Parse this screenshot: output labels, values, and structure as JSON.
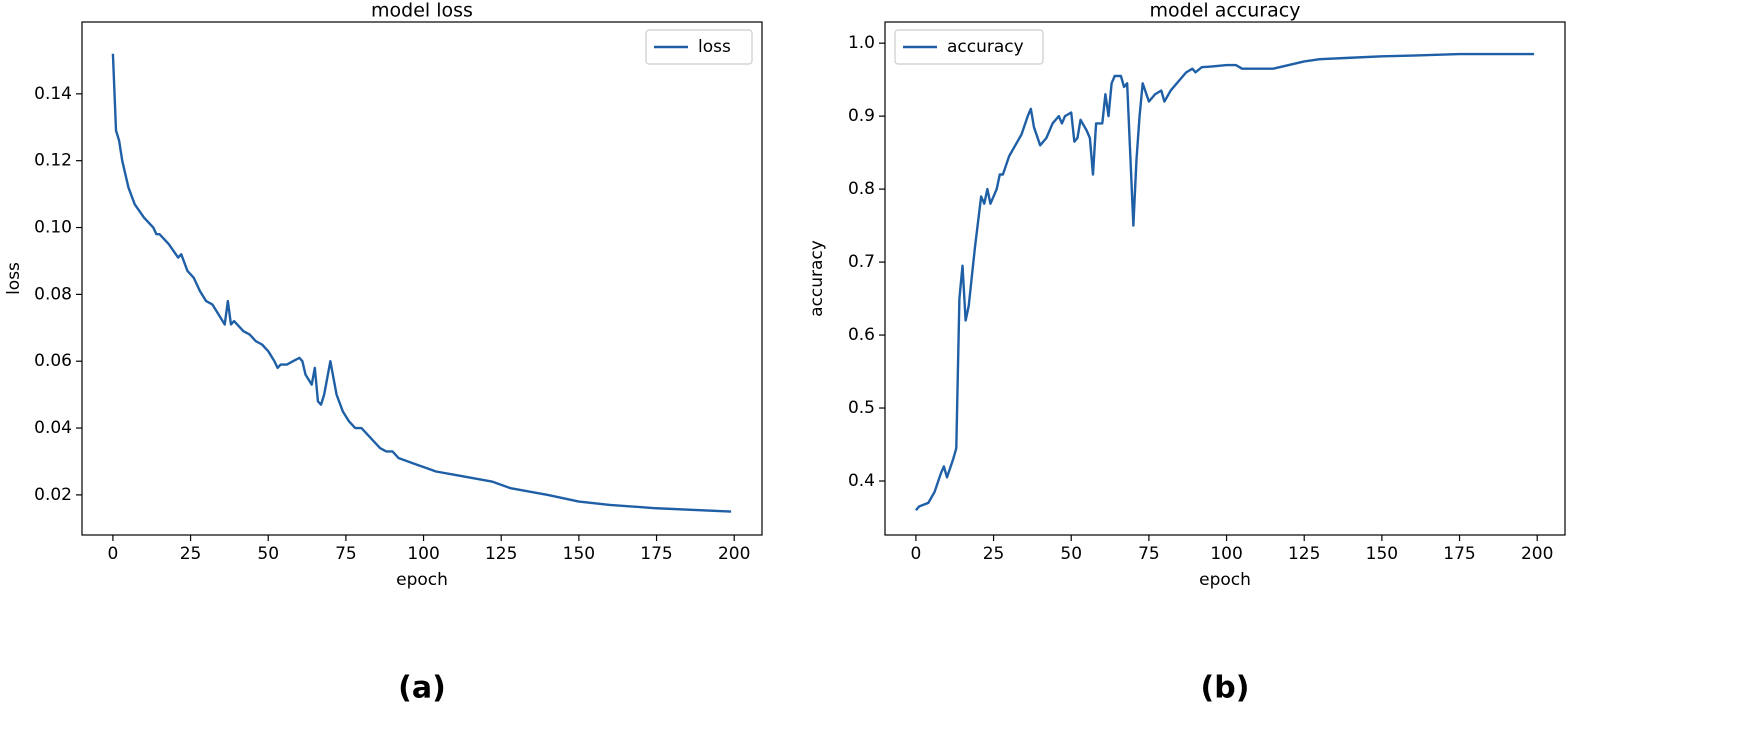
{
  "chart_data": [
    {
      "type": "line",
      "title": "model loss",
      "xlabel": "epoch",
      "ylabel": "loss",
      "caption": "(a)",
      "x": [
        0,
        1,
        2,
        3,
        4,
        5,
        7,
        10,
        13,
        14,
        15,
        18,
        21,
        22,
        24,
        26,
        28,
        30,
        32,
        34,
        36,
        37,
        38,
        39,
        42,
        44,
        46,
        48,
        50,
        52,
        53,
        54,
        56,
        58,
        60,
        61,
        62,
        64,
        65,
        66,
        67,
        68,
        70,
        72,
        74,
        76,
        78,
        80,
        82,
        84,
        86,
        88,
        90,
        92,
        95,
        98,
        101,
        104,
        110,
        116,
        122,
        128,
        134,
        140,
        150,
        160,
        175,
        199
      ],
      "series": [
        {
          "name": "loss",
          "color": "#1f5fa6",
          "values": [
            0.152,
            0.129,
            0.126,
            0.12,
            0.116,
            0.112,
            0.107,
            0.103,
            0.1,
            0.098,
            0.098,
            0.095,
            0.091,
            0.092,
            0.087,
            0.085,
            0.081,
            0.078,
            0.077,
            0.074,
            0.071,
            0.078,
            0.071,
            0.072,
            0.069,
            0.068,
            0.066,
            0.065,
            0.063,
            0.06,
            0.058,
            0.059,
            0.059,
            0.06,
            0.061,
            0.06,
            0.056,
            0.053,
            0.058,
            0.048,
            0.047,
            0.05,
            0.06,
            0.05,
            0.045,
            0.042,
            0.04,
            0.04,
            0.038,
            0.036,
            0.034,
            0.033,
            0.033,
            0.031,
            0.03,
            0.029,
            0.028,
            0.027,
            0.026,
            0.025,
            0.024,
            0.022,
            0.021,
            0.02,
            0.018,
            0.017,
            0.016,
            0.015
          ]
        }
      ],
      "xlim": [
        -9.95,
        208.95
      ],
      "ylim": [
        0.008,
        0.1615
      ],
      "xticks": [
        0,
        25,
        50,
        75,
        100,
        125,
        150,
        175,
        200
      ],
      "yticks": [
        0.02,
        0.04,
        0.06,
        0.08,
        {
          "value": 0.1,
          "label": "0.10"
        },
        0.12,
        0.14
      ],
      "legend": "upper right"
    },
    {
      "type": "line",
      "title": "model accuracy",
      "xlabel": "epoch",
      "ylabel": "accuracy",
      "caption": "(b)",
      "x": [
        0,
        1,
        4,
        6,
        8,
        9,
        10,
        12,
        13,
        14,
        15,
        16,
        17,
        19,
        21,
        22,
        23,
        24,
        26,
        27,
        28,
        30,
        32,
        34,
        36,
        37,
        38,
        40,
        42,
        44,
        46,
        47,
        48,
        50,
        51,
        52,
        53,
        55,
        56,
        57,
        58,
        60,
        61,
        62,
        63,
        64,
        66,
        67,
        68,
        70,
        71,
        72,
        73,
        75,
        77,
        79,
        80,
        82,
        85,
        87,
        89,
        90,
        92,
        95,
        100,
        103,
        105,
        110,
        115,
        120,
        125,
        130,
        140,
        150,
        160,
        175,
        199
      ],
      "series": [
        {
          "name": "accuracy",
          "color": "#1f5fa6",
          "values": [
            0.36,
            0.365,
            0.37,
            0.385,
            0.41,
            0.42,
            0.405,
            0.43,
            0.445,
            0.65,
            0.695,
            0.62,
            0.64,
            0.72,
            0.79,
            0.78,
            0.8,
            0.78,
            0.8,
            0.82,
            0.82,
            0.845,
            0.86,
            0.875,
            0.9,
            0.91,
            0.885,
            0.86,
            0.87,
            0.89,
            0.9,
            0.89,
            0.9,
            0.905,
            0.865,
            0.87,
            0.895,
            0.88,
            0.87,
            0.82,
            0.89,
            0.89,
            0.93,
            0.9,
            0.945,
            0.955,
            0.955,
            0.94,
            0.945,
            0.75,
            0.84,
            0.9,
            0.945,
            0.92,
            0.93,
            0.935,
            0.92,
            0.935,
            0.95,
            0.96,
            0.965,
            0.96,
            0.967,
            0.968,
            0.97,
            0.97,
            0.965,
            0.965,
            0.965,
            0.97,
            0.975,
            0.978,
            0.98,
            0.982,
            0.983,
            0.985,
            0.985
          ]
        }
      ],
      "xlim": [
        -9.95,
        208.95
      ],
      "ylim": [
        0.326,
        1.029
      ],
      "xticks": [
        0,
        25,
        50,
        75,
        100,
        125,
        150,
        175,
        200
      ],
      "yticks": [
        0.4,
        0.5,
        0.6,
        0.7,
        0.8,
        0.9,
        {
          "value": 1,
          "label": "1.0"
        }
      ],
      "legend": "upper left"
    }
  ]
}
